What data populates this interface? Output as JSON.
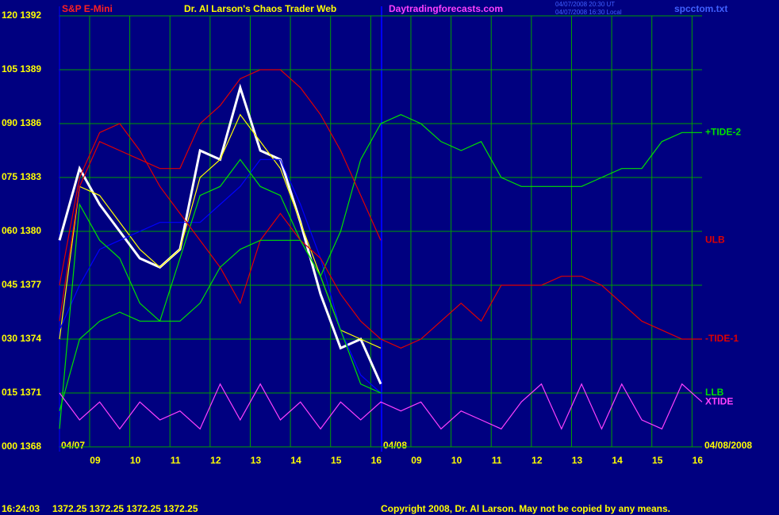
{
  "header": {
    "symbol": "S&P E-Mini",
    "site_title": "Dr. Al Larson's Chaos Trader Web",
    "url": "Daytradingforecasts.com",
    "stamp_ut": "04/07/2008 20:30 UT",
    "stamp_local": "04/07/2008 16:30 Local",
    "file": "spcctom.txt"
  },
  "date_labels": [
    "04/07",
    "04/08",
    "04/08/2008"
  ],
  "footer": {
    "time": "16:24:03",
    "quotes": "1372.25 1372.25 1372.25 1372.25",
    "copyright": "Copyright 2008, Dr. Al Larson. May not be copied by any means."
  },
  "chart_data": {
    "type": "line",
    "grid": true,
    "x": [
      0.25,
      0.75,
      1.25,
      1.75,
      2.25,
      2.75,
      3.25,
      3.75,
      4.25,
      4.75,
      5.25,
      5.75,
      6.25,
      6.75,
      7.25,
      7.75,
      8.25,
      8.75,
      9.25,
      9.75,
      10.25,
      10.75,
      11.25,
      11.75,
      12.25,
      12.75,
      13.25,
      13.75,
      14.25,
      14.75,
      15.25,
      15.75,
      16.25
    ],
    "xlim": [
      0.25,
      16.25
    ],
    "xticks": [
      {
        "value": 1,
        "label": "09"
      },
      {
        "value": 2,
        "label": "10"
      },
      {
        "value": 3,
        "label": "11"
      },
      {
        "value": 4,
        "label": "12"
      },
      {
        "value": 5,
        "label": "13"
      },
      {
        "value": 6,
        "label": "14"
      },
      {
        "value": 7,
        "label": "15"
      },
      {
        "value": 8,
        "label": "16"
      },
      {
        "value": 9,
        "label": "09"
      },
      {
        "value": 10,
        "label": "10"
      },
      {
        "value": 11,
        "label": "11"
      },
      {
        "value": 12,
        "label": "12"
      },
      {
        "value": 13,
        "label": "13"
      },
      {
        "value": 14,
        "label": "14"
      },
      {
        "value": 15,
        "label": "15"
      },
      {
        "value": 16,
        "label": "16"
      }
    ],
    "ylim": [
      1368,
      1392
    ],
    "yticks": [
      {
        "value": 1368,
        "label": "000 1368"
      },
      {
        "value": 1371,
        "label": "015 1371"
      },
      {
        "value": 1374,
        "label": "030 1374"
      },
      {
        "value": 1377,
        "label": "045 1377"
      },
      {
        "value": 1380,
        "label": "060 1380"
      },
      {
        "value": 1383,
        "label": "075 1383"
      },
      {
        "value": 1386,
        "label": "090 1386"
      },
      {
        "value": 1389,
        "label": "105 1389"
      },
      {
        "value": 1392,
        "label": "120 1392"
      }
    ],
    "series": [
      {
        "color": "#ffffff",
        "values": [
          1379.5,
          1383.5,
          1381.5,
          1380,
          1378.5,
          1378,
          1379,
          1384.5,
          1384,
          1388,
          1384.5,
          1384,
          1380.5,
          1376.5,
          1373.5,
          1374,
          1371.5,
          null,
          null,
          null,
          null,
          null,
          null,
          null,
          null,
          null,
          null,
          null,
          null,
          null,
          null,
          null,
          null
        ]
      },
      {
        "color": "#ffff00",
        "values": [
          1374,
          1382.5,
          1382,
          1380.5,
          1379,
          1378,
          1379,
          1383,
          1384,
          1386.5,
          1385,
          1383.5,
          1380.5,
          1377.5,
          1374.5,
          1374,
          1373.5,
          null,
          null,
          null,
          null,
          null,
          null,
          null,
          null,
          null,
          null,
          null,
          null,
          null,
          null,
          null,
          null
        ]
      },
      {
        "color": "#0000ff",
        "values": [
          1374.5,
          1377,
          1379,
          1379.5,
          1380,
          1380.5,
          1380.5,
          1380.5,
          1381.5,
          1382.5,
          1384,
          1384,
          1381.5,
          1378.5,
          1374.5,
          1372,
          1371,
          null,
          null,
          null,
          null,
          null,
          null,
          null,
          null,
          null,
          null,
          null,
          null,
          null,
          null,
          null,
          null
        ]
      },
      {
        "name": "+TIDE-2",
        "color": "#00e000",
        "values": [
          1369,
          1381.5,
          1379.5,
          1378.5,
          1376,
          1375,
          1378.5,
          1382,
          1382.5,
          1384,
          1382.5,
          1382,
          1379.5,
          1377.5,
          1380,
          1384,
          1386,
          1386.5,
          1386,
          1385,
          1384.5,
          1385,
          1383,
          1382.5,
          1382.5,
          1382.5,
          1382.5,
          1383,
          1383.5,
          1383.5,
          1385,
          1385.5,
          1385.5
        ]
      },
      {
        "name": "ULB",
        "color": "#e00000",
        "values": [
          1375,
          1382.5,
          1385,
          1384.5,
          1384,
          1383.5,
          1383.5,
          1386,
          1387,
          1388.5,
          1389,
          1389,
          1388,
          1386.5,
          1384.5,
          1382,
          1379.5,
          null,
          null,
          null,
          null,
          null,
          null,
          null,
          null,
          null,
          null,
          null,
          null,
          null,
          null,
          null,
          null
        ]
      },
      {
        "name": "-TIDE-1",
        "color": "#e00000",
        "values": [
          1377,
          1383,
          1385.5,
          1386,
          1384.5,
          1382.5,
          1381,
          1379.5,
          1378,
          1376,
          1379.5,
          1381,
          1379.5,
          1378.5,
          1376.5,
          1375,
          1374,
          1373.5,
          1374,
          1375,
          1376,
          1375,
          1377,
          1377,
          1377,
          1377.5,
          1377.5,
          1377,
          1376,
          1375,
          1374.5,
          1374,
          1374
        ]
      },
      {
        "name": "LLB",
        "color": "#00e000",
        "values": [
          1370,
          1374,
          1375,
          1375.5,
          1375,
          1375,
          1375,
          1376,
          1378,
          1379,
          1379.5,
          1379.5,
          1379.5,
          1377.5,
          1374.5,
          1371.5,
          1371,
          null,
          null,
          null,
          null,
          null,
          null,
          null,
          null,
          null,
          null,
          null,
          null,
          null,
          null,
          null,
          null
        ]
      },
      {
        "name": "XTIDE",
        "color": "#ff40ff",
        "values": [
          1371,
          1369.5,
          1370.5,
          1369,
          1370.5,
          1369.5,
          1370,
          1369,
          1371.5,
          1369.5,
          1371.5,
          1369.5,
          1370.5,
          1369,
          1370.5,
          1369.5,
          1370.5,
          1370,
          1370.5,
          1369,
          1370,
          1369.5,
          1369,
          1370.5,
          1371.5,
          1369,
          1371.5,
          1369,
          1371.5,
          1369.5,
          1369,
          1371.5,
          1370.5
        ]
      }
    ]
  }
}
